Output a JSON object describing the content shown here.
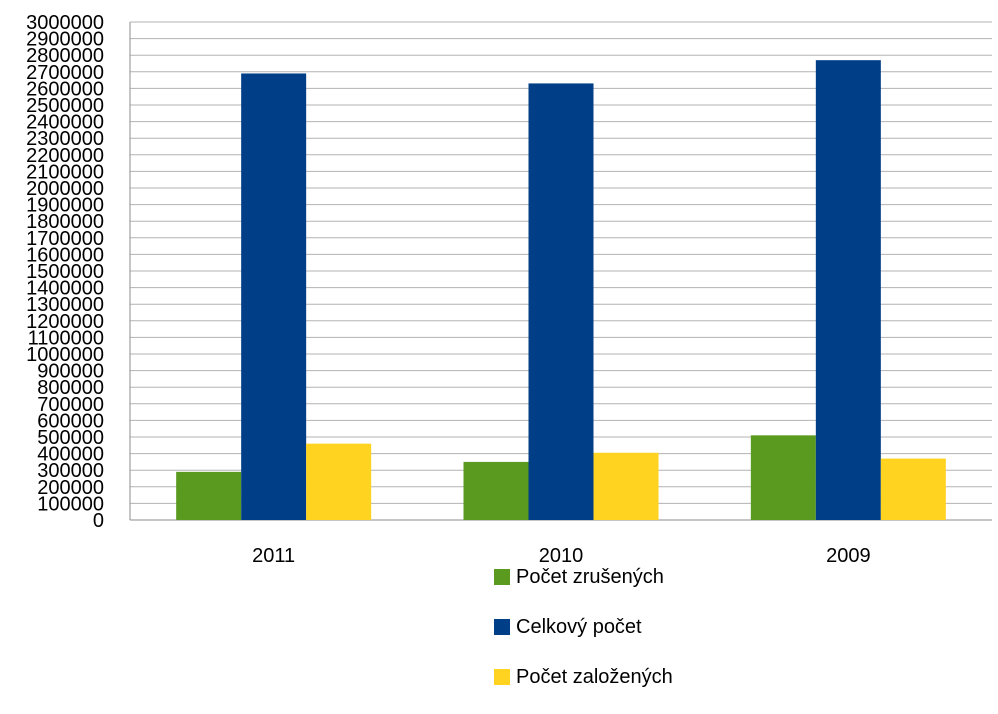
{
  "chart_data": {
    "type": "bar",
    "title": "",
    "xlabel": "",
    "ylabel": "",
    "categories": [
      "2011",
      "2010",
      "2009"
    ],
    "ylim": [
      0,
      3000000
    ],
    "ytick_step": 100000,
    "grid": true,
    "legend_placement": "bottom-center",
    "series": [
      {
        "name": "Počet zrušených",
        "color": "#5a9b1f",
        "values": [
          290000,
          350000,
          510000
        ]
      },
      {
        "name": "Celkový počet",
        "color": "#003f87",
        "values": [
          2690000,
          2630000,
          2770000
        ]
      },
      {
        "name": "Počet založených",
        "color": "#ffd320",
        "values": [
          460000,
          405000,
          370000
        ]
      }
    ]
  }
}
